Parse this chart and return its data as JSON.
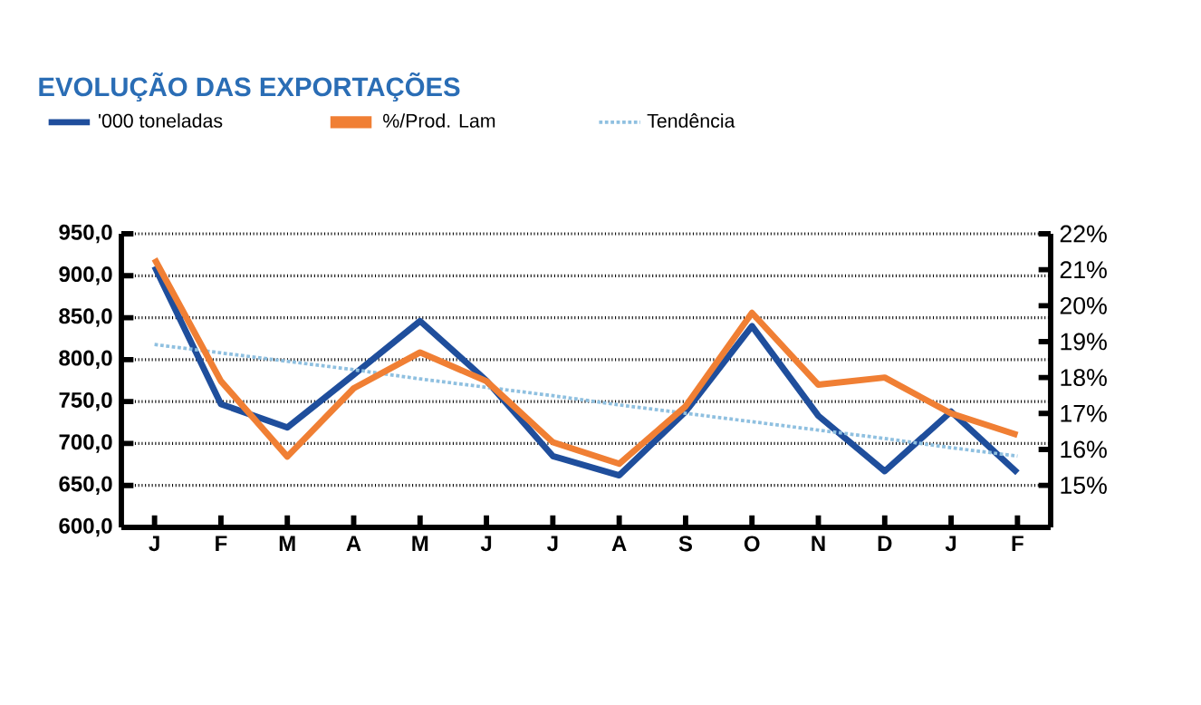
{
  "chart_data": {
    "type": "line",
    "title": "EVOLUÇÃO DAS EXPORTAÇÕES",
    "categories": [
      "J",
      "F",
      "M",
      "A",
      "M",
      "J",
      "J",
      "A",
      "S",
      "O",
      "N",
      "D",
      "J",
      "F"
    ],
    "series": [
      {
        "name": "'000 toneladas",
        "color": "#1f4e9c",
        "line_style": "solid",
        "values": [
          911,
          747,
          719,
          782,
          846,
          775,
          685,
          662,
          738,
          840,
          733,
          667,
          738,
          665
        ]
      },
      {
        "name": "%/Prod. Lam",
        "color": "#f07f34",
        "line_style": "solid",
        "axis": "y2",
        "values": [
          21.3,
          17.9,
          15.8,
          17.7,
          18.7,
          17.9,
          16.2,
          15.6,
          17.2,
          19.8,
          17.8,
          18.0,
          17.0,
          16.4
        ]
      },
      {
        "name": "Tendência",
        "color": "#8fc0e0",
        "line_style": "dotted",
        "values": [
          818,
          808,
          798,
          788,
          777,
          767,
          757,
          746,
          736,
          726,
          716,
          706,
          695,
          685
        ]
      }
    ],
    "ylim": [
      600,
      950
    ],
    "yticks": [
      {
        "value": 600,
        "label": "600,0"
      },
      {
        "value": 650,
        "label": "650,0"
      },
      {
        "value": 700,
        "label": "700,0"
      },
      {
        "value": 750,
        "label": "750,0"
      },
      {
        "value": 800,
        "label": "800,0"
      },
      {
        "value": 850,
        "label": "850,0"
      },
      {
        "value": 900,
        "label": "900,0"
      },
      {
        "value": 950,
        "label": "950,0"
      }
    ],
    "y2lim": [
      13.83,
      22
    ],
    "y2ticks": [
      {
        "value": 15,
        "label": "15%"
      },
      {
        "value": 16,
        "label": "16%"
      },
      {
        "value": 17,
        "label": "17%"
      },
      {
        "value": 18,
        "label": "18%"
      },
      {
        "value": 19,
        "label": "19%"
      },
      {
        "value": 20,
        "label": "20%"
      },
      {
        "value": 21,
        "label": "21%"
      },
      {
        "value": 22,
        "label": "22%"
      }
    ],
    "grid": "y",
    "legend": "top"
  }
}
